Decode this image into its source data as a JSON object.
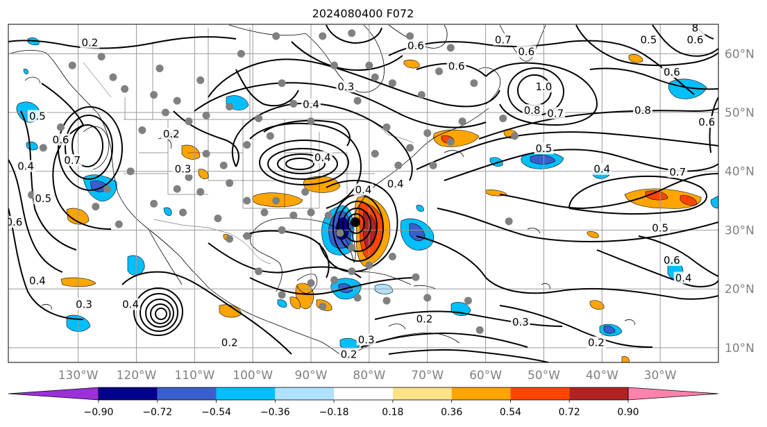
{
  "title": "2024080400 F072",
  "map": {
    "projection": "equirectangular",
    "lon_range": [
      -142,
      -20
    ],
    "lat_range": [
      7.5,
      65
    ],
    "lon_ticks": [
      {
        "value": -130,
        "label": "130°W"
      },
      {
        "value": -120,
        "label": "120°W"
      },
      {
        "value": -110,
        "label": "110°W"
      },
      {
        "value": -100,
        "label": "100°W"
      },
      {
        "value": -90,
        "label": "90°W"
      },
      {
        "value": -80,
        "label": "80°W"
      },
      {
        "value": -70,
        "label": "70°W"
      },
      {
        "value": -60,
        "label": "60°W"
      },
      {
        "value": -50,
        "label": "50°W"
      },
      {
        "value": -40,
        "label": "40°W"
      },
      {
        "value": -30,
        "label": "30°W"
      }
    ],
    "lat_ticks": [
      {
        "value": 10,
        "label": "10°N"
      },
      {
        "value": 20,
        "label": "20°N"
      },
      {
        "value": 30,
        "label": "30°N"
      },
      {
        "value": 40,
        "label": "40°N"
      },
      {
        "value": 50,
        "label": "50°N"
      },
      {
        "value": 60,
        "label": "60°N"
      }
    ],
    "grid": true,
    "tick_label_color": "#808080"
  },
  "colorbar": {
    "colors": [
      "#9b30d9",
      "#00008b",
      "#3a5fcd",
      "#00bfff",
      "#b0e2ff",
      "#ffffff",
      "#fce38a",
      "#ffa500",
      "#ff4500",
      "#b22222",
      "#ff82ab"
    ],
    "labels": [
      "−0.90",
      "−0.72",
      "−0.54",
      "−0.36",
      "−0.18",
      "0.18",
      "0.36",
      "0.54",
      "0.72",
      "0.90"
    ],
    "extend": "both"
  },
  "contour_labels": [
    {
      "lon": -128,
      "lat": 61.5,
      "text": "0.2"
    },
    {
      "lon": -137,
      "lat": 49,
      "text": "0.5"
    },
    {
      "lon": -133,
      "lat": 45,
      "text": "0.6"
    },
    {
      "lon": -131,
      "lat": 41.5,
      "text": "0.7"
    },
    {
      "lon": -139,
      "lat": 40.5,
      "text": "0.4"
    },
    {
      "lon": -136,
      "lat": 35,
      "text": "0.5"
    },
    {
      "lon": -141,
      "lat": 31,
      "text": "0.6"
    },
    {
      "lon": -137,
      "lat": 21,
      "text": "0.4"
    },
    {
      "lon": -129,
      "lat": 17,
      "text": "0.3"
    },
    {
      "lon": -121,
      "lat": 17,
      "text": "0.4"
    },
    {
      "lon": -114,
      "lat": 46,
      "text": "0.2"
    },
    {
      "lon": -112,
      "lat": 40,
      "text": "0.3"
    },
    {
      "lon": -90,
      "lat": 51,
      "text": "0.4"
    },
    {
      "lon": -88,
      "lat": 42,
      "text": "0.4"
    },
    {
      "lon": -81,
      "lat": 36.5,
      "text": "0.4"
    },
    {
      "lon": -75.5,
      "lat": 37.5,
      "text": "0.4"
    },
    {
      "lon": -84,
      "lat": 54,
      "text": "0.3"
    },
    {
      "lon": -72,
      "lat": 61,
      "text": "0.6"
    },
    {
      "lon": -65,
      "lat": 57.5,
      "text": "0.6"
    },
    {
      "lon": -57,
      "lat": 62,
      "text": "0.7"
    },
    {
      "lon": -53,
      "lat": 60,
      "text": "0.6"
    },
    {
      "lon": -50,
      "lat": 54,
      "text": "1.0"
    },
    {
      "lon": -52,
      "lat": 50,
      "text": "0.8"
    },
    {
      "lon": -48,
      "lat": 49.5,
      "text": "0.7"
    },
    {
      "lon": -33,
      "lat": 50,
      "text": "0.8"
    },
    {
      "lon": -28,
      "lat": 56.5,
      "text": "0.6"
    },
    {
      "lon": -32,
      "lat": 62,
      "text": "0.5"
    },
    {
      "lon": -24,
      "lat": 62,
      "text": "0.6"
    },
    {
      "lon": -50,
      "lat": 43.5,
      "text": "0.5"
    },
    {
      "lon": -40,
      "lat": 40,
      "text": "0.4"
    },
    {
      "lon": -27,
      "lat": 39.5,
      "text": "0.7"
    },
    {
      "lon": -30,
      "lat": 30,
      "text": "0.5"
    },
    {
      "lon": -28,
      "lat": 24.5,
      "text": "0.6"
    },
    {
      "lon": -26,
      "lat": 21.5,
      "text": "0.4"
    },
    {
      "lon": -22,
      "lat": 48,
      "text": "0.6"
    },
    {
      "lon": -70.5,
      "lat": 14.5,
      "text": "0.2"
    },
    {
      "lon": -54,
      "lat": 14,
      "text": "0.3"
    },
    {
      "lon": -41,
      "lat": 10.5,
      "text": "0.2"
    },
    {
      "lon": -80.5,
      "lat": 11,
      "text": "0.3"
    },
    {
      "lon": -83.5,
      "lat": 8.5,
      "text": "0.2"
    },
    {
      "lon": -104,
      "lat": 10.5,
      "text": "0.2"
    },
    {
      "lon": -24,
      "lat": 64,
      "text": "8"
    }
  ],
  "station_points": [
    [
      -126,
      59.5
    ],
    [
      -131,
      58
    ],
    [
      -124,
      56
    ],
    [
      -109,
      55.5
    ],
    [
      -116,
      57.5
    ],
    [
      -122,
      54
    ],
    [
      -113,
      52
    ],
    [
      -117,
      53
    ],
    [
      -115,
      50
    ],
    [
      -111,
      48.5
    ],
    [
      -119,
      47
    ],
    [
      -114,
      46
    ],
    [
      -108,
      49.5
    ],
    [
      -104,
      51
    ],
    [
      -99,
      49
    ],
    [
      -95,
      55
    ],
    [
      -93,
      51.5
    ],
    [
      -90,
      48.5
    ],
    [
      -101,
      44.5
    ],
    [
      -97,
      46
    ],
    [
      -108,
      43
    ],
    [
      -105,
      41
    ],
    [
      -111,
      39
    ],
    [
      -113,
      37
    ],
    [
      -109,
      36.5
    ],
    [
      -104,
      38
    ],
    [
      -101,
      35
    ],
    [
      -96,
      35
    ],
    [
      -93,
      32.5
    ],
    [
      -91,
      36.5
    ],
    [
      -98,
      33
    ],
    [
      -101,
      29
    ],
    [
      -95,
      30
    ],
    [
      -90,
      33
    ],
    [
      -87,
      32.5
    ],
    [
      -85,
      29.5
    ],
    [
      -83,
      27
    ],
    [
      -79,
      43
    ],
    [
      -75,
      41
    ],
    [
      -73,
      44
    ],
    [
      -77,
      47.5
    ],
    [
      -70,
      46.5
    ],
    [
      -66,
      45
    ],
    [
      -64,
      48.5
    ],
    [
      -69,
      41
    ],
    [
      -68,
      57
    ],
    [
      -71,
      53
    ],
    [
      -62,
      55
    ],
    [
      -57,
      49
    ],
    [
      -55,
      46
    ],
    [
      -79,
      56
    ],
    [
      -82,
      52
    ],
    [
      -86,
      58
    ],
    [
      -88,
      63
    ],
    [
      -83,
      63.5
    ],
    [
      -73,
      63
    ],
    [
      -66,
      61
    ],
    [
      -76,
      55
    ],
    [
      -80,
      58
    ],
    [
      -96,
      63
    ],
    [
      -102,
      60
    ],
    [
      -121,
      40
    ],
    [
      -117,
      34.5
    ],
    [
      -112,
      33
    ],
    [
      -106,
      32
    ],
    [
      -104,
      28.5
    ],
    [
      -99,
      23
    ],
    [
      -95,
      19
    ],
    [
      -90,
      21
    ],
    [
      -86,
      21.5
    ],
    [
      -83,
      23
    ],
    [
      -80,
      24
    ],
    [
      -76,
      25.5
    ],
    [
      -72,
      22
    ],
    [
      -77,
      18
    ],
    [
      -82,
      18.5
    ],
    [
      -88,
      17
    ],
    [
      -70,
      18.5
    ],
    [
      -63,
      18
    ],
    [
      -61,
      13
    ],
    [
      -56,
      31.5
    ],
    [
      -125,
      37
    ],
    [
      -127,
      34
    ],
    [
      -123,
      31
    ],
    [
      -133,
      47.5
    ],
    [
      -136,
      44
    ],
    [
      -138,
      36
    ]
  ]
}
